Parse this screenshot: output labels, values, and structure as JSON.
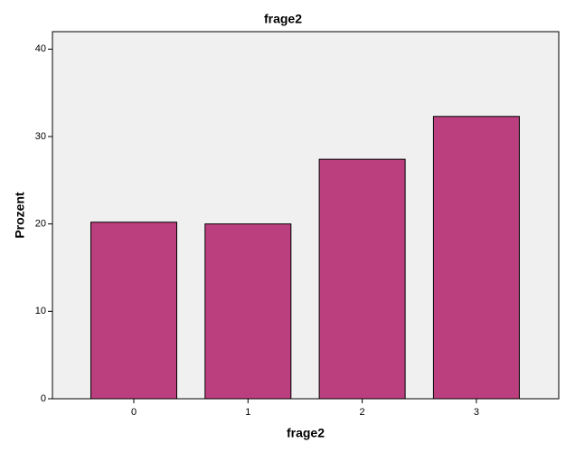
{
  "chart_data": {
    "type": "bar",
    "title": "frage2",
    "x_label": "frage2",
    "y_label": "Prozent",
    "categories": [
      "0",
      "1",
      "2",
      "3"
    ],
    "values": [
      20.2,
      20.0,
      27.4,
      32.3
    ],
    "color": "#bb3f7e",
    "ylim": [
      0,
      42
    ],
    "yticks": [
      0,
      10,
      20,
      30,
      40
    ],
    "grid": false
  }
}
